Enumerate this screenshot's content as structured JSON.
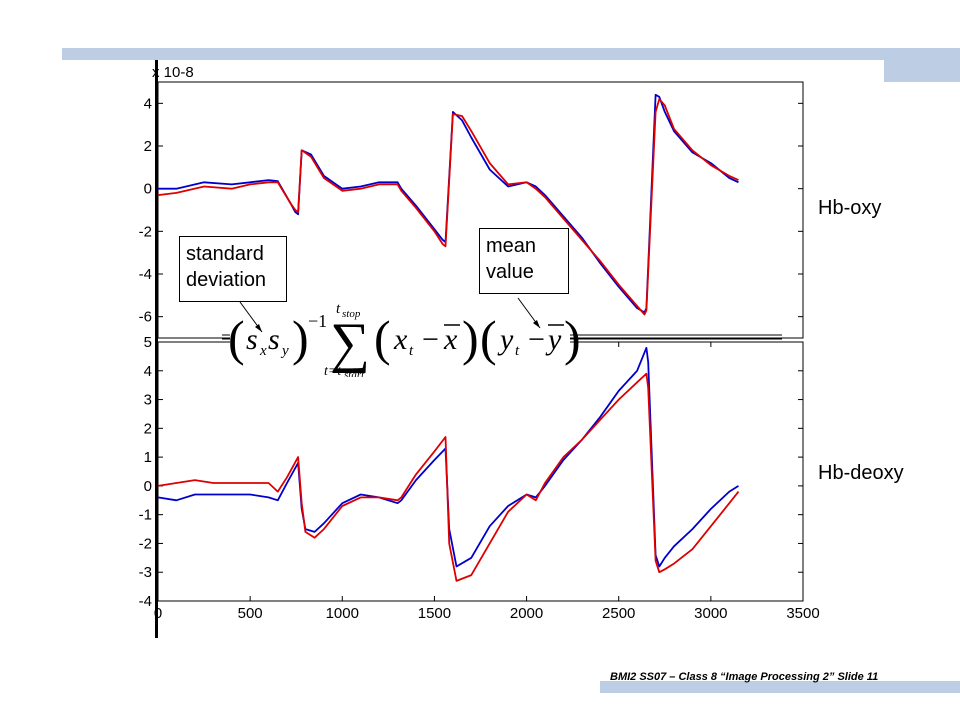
{
  "slide": {
    "footer": "BMI2 SS07 – Class 8 “Image Processing 2” Slide 11",
    "label_top": "Hb-oxy",
    "label_bottom": "Hb-deoxy",
    "callout_std": "standard\ndeviation",
    "callout_mean": "mean\nvalue",
    "formula_text": "(s_x s_y)^-1 Σ_{t=t_start}^{t_stop} (x_t − x̄)(y_t − ȳ)"
  },
  "chart_data": [
    {
      "type": "line",
      "multiplier": "x 10-8",
      "xlim": [
        0,
        3500
      ],
      "ylim": [
        -7,
        5
      ],
      "y_ticks": [
        -6,
        -4,
        -2,
        0,
        2,
        4
      ],
      "colors": [
        "#0000cc",
        "#dd0000"
      ],
      "series": [
        {
          "x": [
            0,
            100,
            250,
            400,
            500,
            600,
            650,
            720,
            745,
            760,
            780,
            830,
            900,
            1000,
            1100,
            1200,
            1300,
            1320,
            1400,
            1500,
            1545,
            1560,
            1600,
            1650,
            1700,
            1800,
            1900,
            2000,
            2050,
            2100,
            2200,
            2300,
            2400,
            2500,
            2600,
            2640,
            2650,
            2700,
            2720,
            2750,
            2800,
            2900,
            3000,
            3100,
            3150
          ],
          "values": [
            0.0,
            0.0,
            0.3,
            0.2,
            0.3,
            0.4,
            0.35,
            -0.7,
            -1.1,
            -1.2,
            1.8,
            1.6,
            0.6,
            0.0,
            0.1,
            0.3,
            0.3,
            0.0,
            -0.8,
            -1.9,
            -2.4,
            -2.5,
            3.6,
            3.2,
            2.4,
            0.9,
            0.1,
            0.3,
            0.1,
            -0.3,
            -1.3,
            -2.3,
            -3.5,
            -4.6,
            -5.6,
            -5.8,
            -5.6,
            4.4,
            4.3,
            3.6,
            2.7,
            1.7,
            1.2,
            0.5,
            0.3
          ]
        },
        {
          "x": [
            0,
            100,
            250,
            400,
            500,
            600,
            650,
            720,
            745,
            760,
            780,
            830,
            900,
            1000,
            1100,
            1200,
            1300,
            1320,
            1400,
            1500,
            1545,
            1560,
            1600,
            1650,
            1700,
            1800,
            1900,
            2000,
            2050,
            2100,
            2200,
            2300,
            2400,
            2500,
            2600,
            2640,
            2650,
            2700,
            2720,
            2750,
            2800,
            2900,
            3000,
            3100,
            3150
          ],
          "values": [
            -0.3,
            -0.2,
            0.1,
            0.0,
            0.2,
            0.3,
            0.3,
            -0.7,
            -1.0,
            -1.1,
            1.8,
            1.5,
            0.5,
            -0.1,
            0.0,
            0.2,
            0.2,
            -0.1,
            -0.9,
            -2.0,
            -2.6,
            -2.7,
            3.5,
            3.4,
            2.7,
            1.2,
            0.2,
            0.3,
            0.0,
            -0.4,
            -1.4,
            -2.4,
            -3.4,
            -4.5,
            -5.5,
            -5.9,
            -5.7,
            3.6,
            4.2,
            3.9,
            2.8,
            1.8,
            1.1,
            0.6,
            0.4
          ]
        }
      ]
    },
    {
      "type": "line",
      "xlim": [
        0,
        3500
      ],
      "ylim": [
        -4,
        5
      ],
      "x_ticks": [
        0,
        500,
        1000,
        1500,
        2000,
        2500,
        3000,
        3500
      ],
      "y_ticks": [
        -4,
        -3,
        -2,
        -1,
        0,
        1,
        2,
        3,
        4,
        5
      ],
      "colors": [
        "#0000cc",
        "#dd0000"
      ],
      "series": [
        {
          "x": [
            0,
            100,
            200,
            300,
            400,
            500,
            600,
            650,
            700,
            760,
            780,
            800,
            850,
            900,
            1000,
            1100,
            1200,
            1300,
            1320,
            1400,
            1500,
            1560,
            1580,
            1620,
            1700,
            1800,
            1900,
            2000,
            2050,
            2100,
            2200,
            2300,
            2400,
            2500,
            2600,
            2650,
            2660,
            2700,
            2720,
            2750,
            2800,
            2900,
            3000,
            3100,
            3150
          ],
          "values": [
            -0.4,
            -0.5,
            -0.3,
            -0.3,
            -0.3,
            -0.3,
            -0.4,
            -0.5,
            0.1,
            0.8,
            -0.8,
            -1.5,
            -1.6,
            -1.3,
            -0.6,
            -0.3,
            -0.4,
            -0.6,
            -0.5,
            0.2,
            0.9,
            1.3,
            -1.5,
            -2.8,
            -2.5,
            -1.4,
            -0.7,
            -0.3,
            -0.4,
            0.0,
            0.9,
            1.6,
            2.4,
            3.3,
            4.0,
            4.8,
            4.3,
            -2.4,
            -2.8,
            -2.5,
            -2.1,
            -1.5,
            -0.8,
            -0.2,
            0.0
          ]
        },
        {
          "x": [
            0,
            100,
            200,
            300,
            400,
            500,
            600,
            650,
            700,
            760,
            780,
            800,
            850,
            900,
            1000,
            1100,
            1200,
            1300,
            1320,
            1400,
            1500,
            1560,
            1580,
            1620,
            1700,
            1800,
            1900,
            2000,
            2050,
            2100,
            2200,
            2300,
            2400,
            2500,
            2600,
            2650,
            2660,
            2700,
            2720,
            2750,
            2800,
            2900,
            3000,
            3100,
            3150
          ],
          "values": [
            0.0,
            0.1,
            0.2,
            0.1,
            0.1,
            0.1,
            0.1,
            -0.2,
            0.3,
            1.0,
            -0.6,
            -1.6,
            -1.8,
            -1.5,
            -0.7,
            -0.4,
            -0.4,
            -0.5,
            -0.4,
            0.4,
            1.2,
            1.7,
            -2.0,
            -3.3,
            -3.1,
            -2.0,
            -0.9,
            -0.3,
            -0.5,
            0.1,
            1.0,
            1.6,
            2.3,
            3.0,
            3.6,
            3.9,
            3.4,
            -2.6,
            -3.0,
            -2.9,
            -2.7,
            -2.2,
            -1.4,
            -0.6,
            -0.2
          ]
        }
      ]
    }
  ]
}
